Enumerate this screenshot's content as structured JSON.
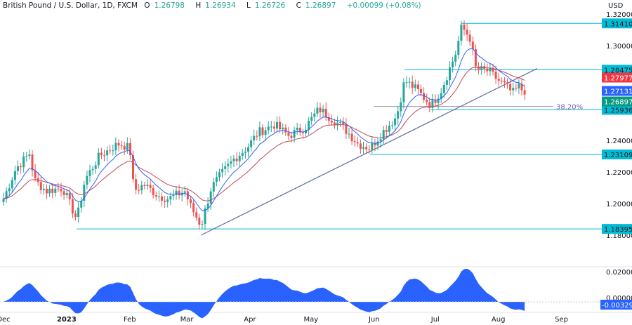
{
  "header": {
    "symbol": "British Pound / U.S. Dollar, 1D, FXCM",
    "open_label": "O",
    "open": "1.26798",
    "high_label": "H",
    "high": "1.26934",
    "low_label": "L",
    "low": "1.26726",
    "close_label": "C",
    "close": "1.26897",
    "change": "+0.00099 (+0.08%)"
  },
  "chart_data": {
    "type": "candlestick",
    "currency": "USD",
    "ylim": [
      1.175,
      1.32
    ],
    "yticks": [
      "1.32000",
      "1.30000",
      "1.24000",
      "1.22000",
      "1.20000",
      "1.18000"
    ],
    "xticks": [
      {
        "label": "Dec",
        "date": "2022-12-01"
      },
      {
        "label": "2023",
        "date": "2023-01-01"
      },
      {
        "label": "Feb",
        "date": "2023-02-01"
      },
      {
        "label": "Mar",
        "date": "2023-03-01"
      },
      {
        "label": "Apr",
        "date": "2023-04-01"
      },
      {
        "label": "May",
        "date": "2023-05-01"
      },
      {
        "label": "Jun",
        "date": "2023-06-01"
      },
      {
        "label": "Jul",
        "date": "2023-07-01"
      },
      {
        "label": "Aug",
        "date": "2023-08-01"
      },
      {
        "label": "Sep",
        "date": "2023-09-01"
      }
    ],
    "closes_approx": [
      [
        "2022-12-01",
        1.203
      ],
      [
        "2022-12-07",
        1.222
      ],
      [
        "2022-12-14",
        1.232
      ],
      [
        "2022-12-16",
        1.215
      ],
      [
        "2022-12-22",
        1.208
      ],
      [
        "2022-12-30",
        1.21
      ],
      [
        "2023-01-06",
        1.19
      ],
      [
        "2023-01-10",
        1.215
      ],
      [
        "2023-01-17",
        1.23
      ],
      [
        "2023-01-24",
        1.236
      ],
      [
        "2023-01-27",
        1.238
      ],
      [
        "2023-02-01",
        1.235
      ],
      [
        "2023-02-03",
        1.208
      ],
      [
        "2023-02-08",
        1.212
      ],
      [
        "2023-02-15",
        1.205
      ],
      [
        "2023-02-20",
        1.203
      ],
      [
        "2023-02-28",
        1.208
      ],
      [
        "2023-03-03",
        1.198
      ],
      [
        "2023-03-08",
        1.186
      ],
      [
        "2023-03-13",
        1.21
      ],
      [
        "2023-03-17",
        1.217
      ],
      [
        "2023-03-24",
        1.228
      ],
      [
        "2023-03-31",
        1.236
      ],
      [
        "2023-04-05",
        1.245
      ],
      [
        "2023-04-13",
        1.25
      ],
      [
        "2023-04-20",
        1.243
      ],
      [
        "2023-04-28",
        1.248
      ],
      [
        "2023-05-05",
        1.26
      ],
      [
        "2023-05-10",
        1.255
      ],
      [
        "2023-05-17",
        1.248
      ],
      [
        "2023-05-24",
        1.238
      ],
      [
        "2023-05-30",
        1.235
      ],
      [
        "2023-06-05",
        1.245
      ],
      [
        "2023-06-12",
        1.255
      ],
      [
        "2023-06-16",
        1.278
      ],
      [
        "2023-06-22",
        1.272
      ],
      [
        "2023-06-29",
        1.262
      ],
      [
        "2023-07-04",
        1.272
      ],
      [
        "2023-07-11",
        1.295
      ],
      [
        "2023-07-14",
        1.312
      ],
      [
        "2023-07-18",
        1.305
      ],
      [
        "2023-07-21",
        1.285
      ],
      [
        "2023-07-27",
        1.284
      ],
      [
        "2023-08-01",
        1.278
      ],
      [
        "2023-08-04",
        1.275
      ],
      [
        "2023-08-08",
        1.27
      ],
      [
        "2023-08-11",
        1.274
      ],
      [
        "2023-08-15",
        1.26897
      ]
    ],
    "levels": [
      {
        "value": 1.3141,
        "label": "1.31410",
        "from": "2023-07-14"
      },
      {
        "value": 1.28475,
        "label": "1.28475",
        "from": "2023-06-16"
      },
      {
        "value": 1.25936,
        "label": "1.25936",
        "from": "2023-06-29"
      },
      {
        "value": 1.23109,
        "label": "1.23109",
        "from": "2023-05-30"
      },
      {
        "value": 1.18395,
        "label": "1.18395",
        "from": "2023-01-06"
      }
    ],
    "fib": {
      "value": 1.2615,
      "label": "38.20%",
      "from": "2023-06-01",
      "to": "2023-08-28"
    },
    "trendline": {
      "from": [
        "2023-03-08",
        1.18
      ],
      "to": [
        "2023-08-20",
        1.2855
      ]
    },
    "price_labels": [
      {
        "label": "1.27977",
        "color": "#f23645"
      },
      {
        "label": "1.27131",
        "color": "#2962ff"
      },
      {
        "label": "1.26897",
        "color": "#089981"
      }
    ],
    "oscillator": {
      "yticks": [
        "0.02000",
        "0.00000"
      ],
      "last_label": "-0.00329",
      "ylim": [
        -0.004,
        0.022
      ]
    },
    "colors": {
      "up": "#26a69a",
      "down": "#ef5350",
      "level": "#00bcd4",
      "ma_fast": "#2962ff",
      "ma_slow": "#c2485a",
      "osc": "#2962ff"
    }
  }
}
